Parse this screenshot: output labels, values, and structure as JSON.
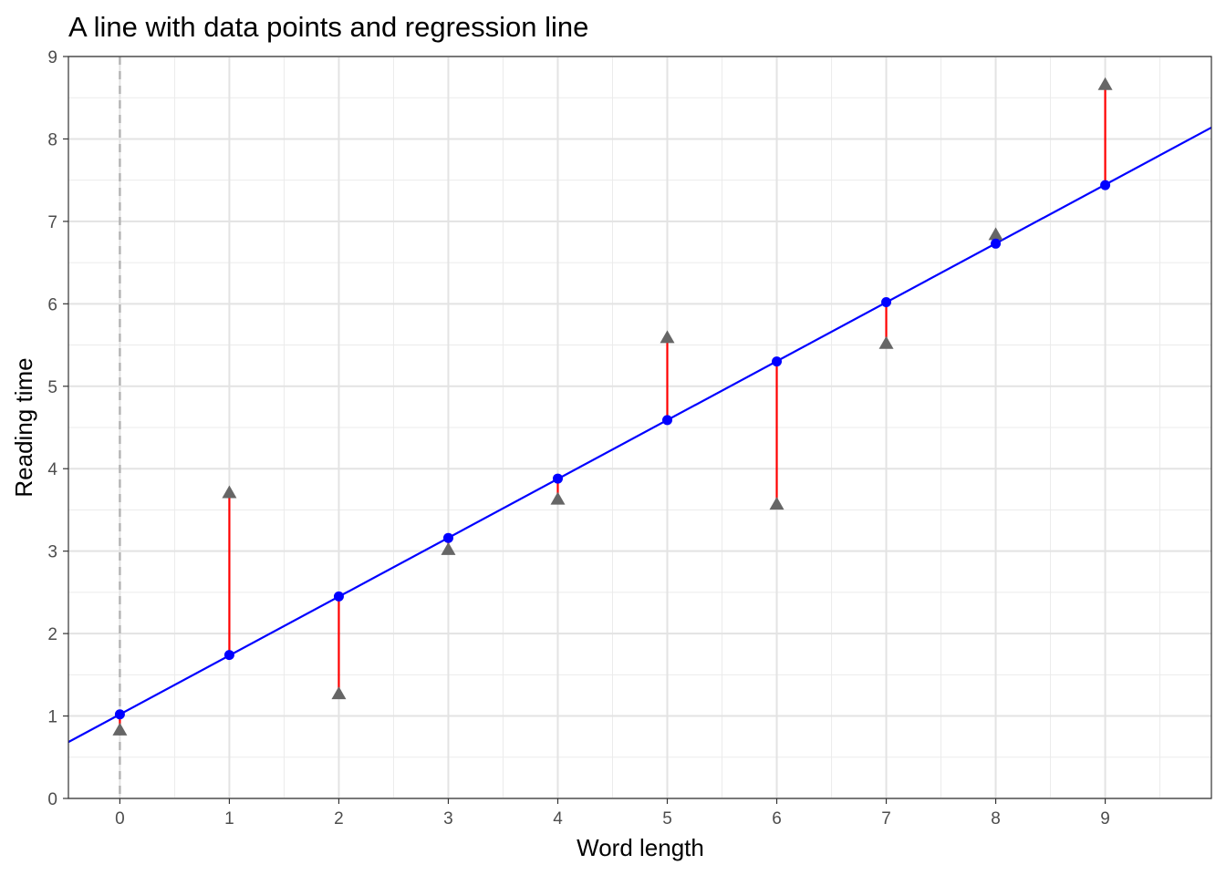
{
  "chart_data": {
    "type": "scatter",
    "title": "A line with data points and regression line",
    "xlabel": "Word length",
    "ylabel": "Reading time",
    "xlim": [
      -0.47,
      9.97
    ],
    "ylim": [
      0,
      9
    ],
    "x_ticks": [
      0,
      1,
      2,
      3,
      4,
      5,
      6,
      7,
      8,
      9
    ],
    "y_ticks": [
      0,
      1,
      2,
      3,
      4,
      5,
      6,
      7,
      8,
      9
    ],
    "grid": true,
    "regression": {
      "intercept": 1.02,
      "slope": 0.714,
      "color": "#0000ff"
    },
    "reference_line": {
      "x": 0,
      "style": "dashed",
      "color": "#b3b3b3"
    },
    "observed": {
      "x": [
        0,
        1,
        2,
        3,
        4,
        5,
        6,
        7,
        8,
        9
      ],
      "y": [
        0.83,
        3.71,
        1.27,
        3.02,
        3.63,
        5.59,
        3.57,
        5.52,
        6.84,
        8.66
      ],
      "marker": "triangle",
      "color": "#666666"
    },
    "fitted": {
      "x": [
        0,
        1,
        2,
        3,
        4,
        5,
        6,
        7,
        8,
        9
      ],
      "y": [
        1.02,
        1.74,
        2.45,
        3.16,
        3.88,
        4.59,
        5.3,
        6.02,
        6.73,
        7.44
      ],
      "marker": "circle",
      "color": "#0000ff"
    },
    "residual_color": "#ff0000"
  }
}
